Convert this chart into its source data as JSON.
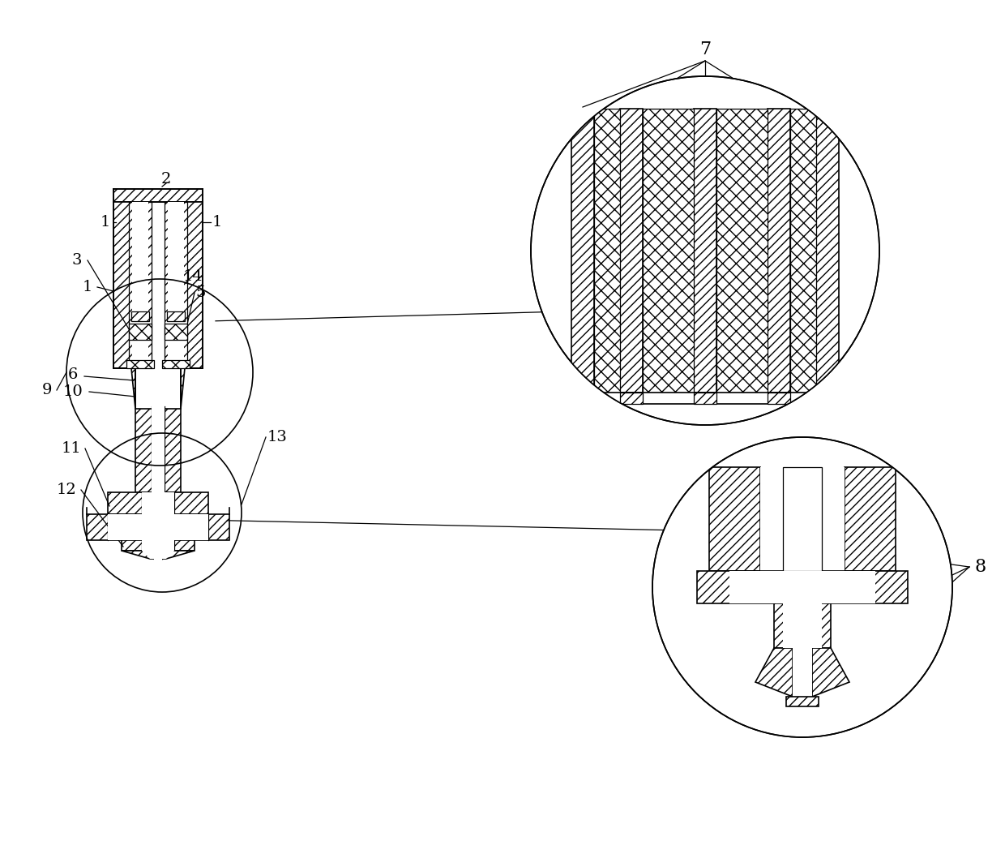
{
  "bg_color": "#ffffff",
  "line_color": "#000000",
  "fig_width": 12.4,
  "fig_height": 10.69,
  "dpi": 100
}
